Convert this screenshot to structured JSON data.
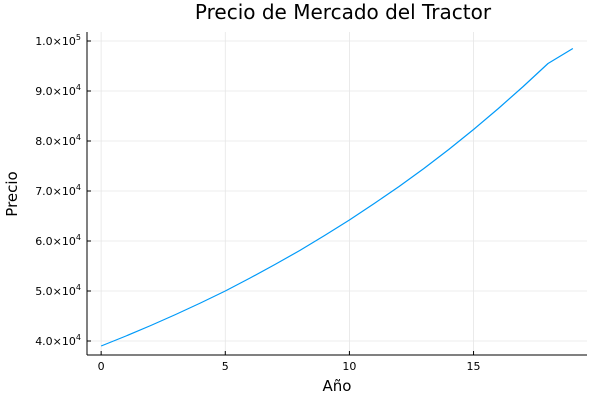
{
  "chart_data": {
    "type": "line",
    "title": "Precio de Mercado del Tractor",
    "xlabel": "Año",
    "ylabel": "Precio",
    "xlim": [
      -0.57,
      19.57
    ],
    "ylim": [
      37200,
      101800
    ],
    "xticks": [
      {
        "value": 0,
        "label": "0"
      },
      {
        "value": 5,
        "label": "5"
      },
      {
        "value": 10,
        "label": "10"
      },
      {
        "value": 15,
        "label": "15"
      }
    ],
    "yticks": [
      {
        "value": 40000,
        "mantissa": "4.0",
        "base": "×10",
        "exp": "4"
      },
      {
        "value": 50000,
        "mantissa": "5.0",
        "base": "×10",
        "exp": "4"
      },
      {
        "value": 60000,
        "mantissa": "6.0",
        "base": "×10",
        "exp": "4"
      },
      {
        "value": 70000,
        "mantissa": "7.0",
        "base": "×10",
        "exp": "4"
      },
      {
        "value": 80000,
        "mantissa": "8.0",
        "base": "×10",
        "exp": "4"
      },
      {
        "value": 90000,
        "mantissa": "9.0",
        "base": "×10",
        "exp": "4"
      },
      {
        "value": 100000,
        "mantissa": "1.0",
        "base": "×10",
        "exp": "5"
      }
    ],
    "grid": true,
    "legend": false,
    "series": [
      {
        "color": "#009af9",
        "x": [
          0,
          1,
          2,
          3,
          4,
          5,
          6,
          7,
          8,
          9,
          10,
          11,
          12,
          13,
          14,
          15,
          16,
          17,
          18,
          19
        ],
        "y": [
          39000,
          41000,
          43100,
          45300,
          47600,
          50000,
          52600,
          55300,
          58100,
          61100,
          64200,
          67500,
          70900,
          74500,
          78300,
          82300,
          86500,
          90900,
          95500,
          98500
        ]
      }
    ]
  }
}
